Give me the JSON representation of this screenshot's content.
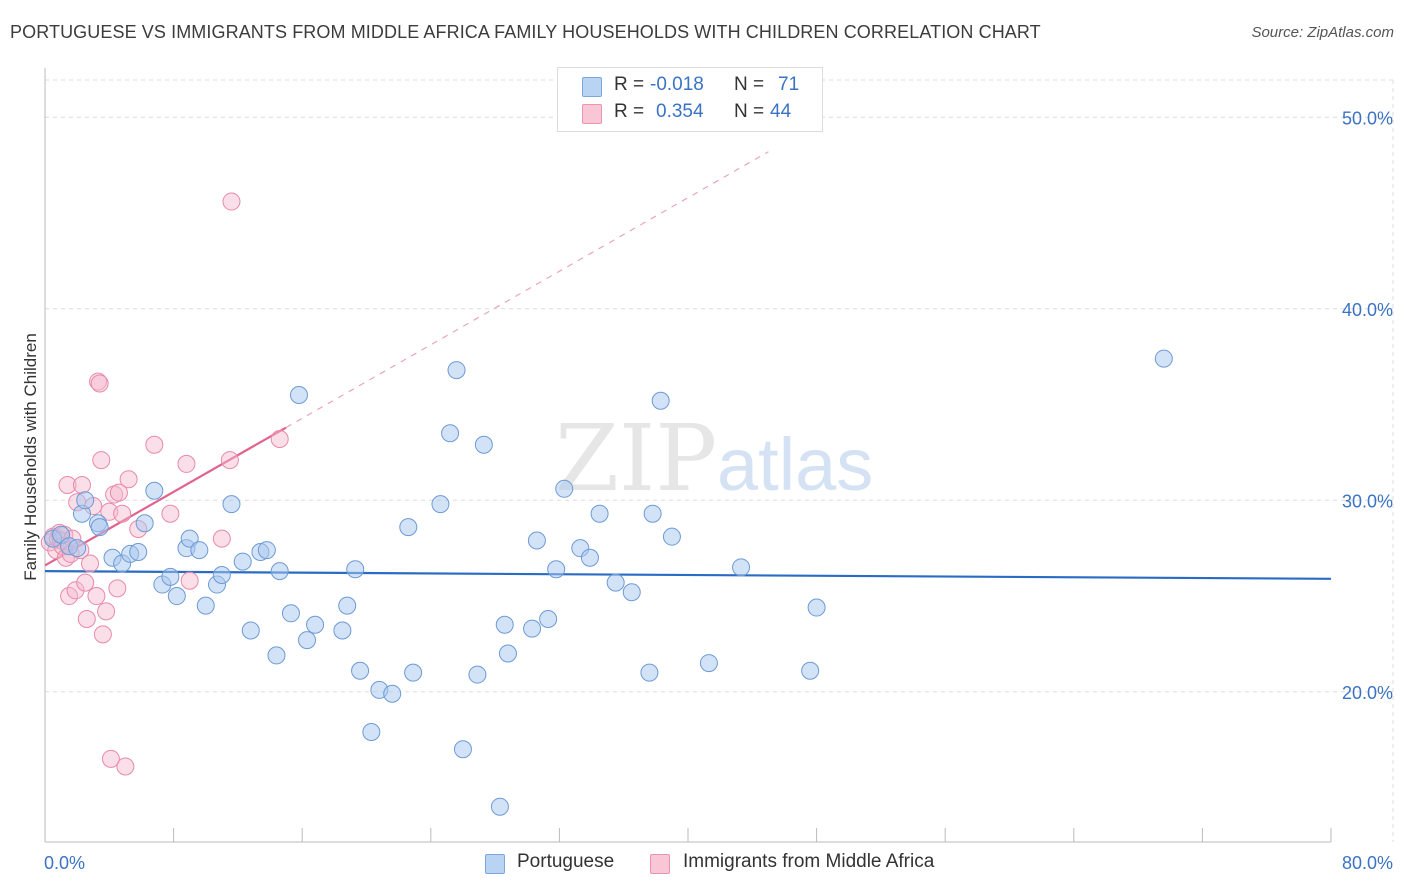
{
  "title": "PORTUGUESE VS IMMIGRANTS FROM MIDDLE AFRICA FAMILY HOUSEHOLDS WITH CHILDREN CORRELATION CHART",
  "source": "Source: ZipAtlas.com",
  "watermark": {
    "zip": "ZIP",
    "atlas": "atlas"
  },
  "legend_top": {
    "rows": [
      {
        "r_label": "R = ",
        "r_value": "-0.018",
        "n_label": "N = ",
        "n_value": "71"
      },
      {
        "r_label": "R = ",
        "r_value": "0.354",
        "n_label": "N = ",
        "n_value": "44"
      }
    ]
  },
  "legend_bottom": {
    "series1": "Portuguese",
    "series2": "Immigrants from Middle Africa"
  },
  "colors": {
    "blue_fill": "#a8c8f0",
    "blue_stroke": "#6d9ad6",
    "blue_line": "#2a6cc4",
    "pink_fill": "#f6b8cc",
    "pink_stroke": "#e88aa8",
    "pink_line": "#e0648e",
    "tick_text": "#3b73c4",
    "grid": "#dcdcdc"
  },
  "chart_data": {
    "type": "scatter",
    "title": "PORTUGUESE VS IMMIGRANTS FROM MIDDLE AFRICA FAMILY HOUSEHOLDS WITH CHILDREN CORRELATION CHART",
    "xlabel": "",
    "ylabel": "Family Households with Children",
    "xlim": [
      0,
      80
    ],
    "ylim": [
      10,
      52
    ],
    "x_tick_labels": [
      "0.0%",
      "80.0%"
    ],
    "y_ticks": [
      20,
      30,
      40,
      50
    ],
    "y_tick_labels": [
      "20.0%",
      "30.0%",
      "40.0%",
      "50.0%"
    ],
    "grid": true,
    "legend_position": "bottom",
    "series": [
      {
        "name": "Portuguese",
        "r": -0.018,
        "n": 71,
        "trend": {
          "x0": 0,
          "y0": 26.3,
          "x1": 80,
          "y1": 25.9
        },
        "points": [
          [
            0.5,
            28.0
          ],
          [
            1.0,
            28.2
          ],
          [
            1.5,
            27.6
          ],
          [
            2.0,
            27.5
          ],
          [
            2.3,
            29.3
          ],
          [
            2.5,
            30.0
          ],
          [
            3.3,
            28.8
          ],
          [
            3.4,
            28.6
          ],
          [
            4.2,
            27.0
          ],
          [
            4.8,
            26.7
          ],
          [
            5.3,
            27.2
          ],
          [
            5.8,
            27.3
          ],
          [
            6.2,
            28.8
          ],
          [
            6.8,
            30.5
          ],
          [
            7.3,
            25.6
          ],
          [
            7.8,
            26.0
          ],
          [
            8.2,
            25.0
          ],
          [
            8.8,
            27.5
          ],
          [
            9.0,
            28.0
          ],
          [
            9.6,
            27.4
          ],
          [
            10.0,
            24.5
          ],
          [
            10.7,
            25.6
          ],
          [
            11.0,
            26.1
          ],
          [
            11.6,
            29.8
          ],
          [
            12.3,
            26.8
          ],
          [
            12.8,
            23.2
          ],
          [
            13.4,
            27.3
          ],
          [
            13.8,
            27.4
          ],
          [
            14.4,
            21.9
          ],
          [
            14.6,
            26.3
          ],
          [
            15.3,
            24.1
          ],
          [
            15.8,
            35.5
          ],
          [
            16.3,
            22.7
          ],
          [
            16.8,
            23.5
          ],
          [
            18.5,
            23.2
          ],
          [
            18.8,
            24.5
          ],
          [
            19.3,
            26.4
          ],
          [
            19.6,
            21.1
          ],
          [
            20.3,
            17.9
          ],
          [
            20.8,
            20.1
          ],
          [
            21.6,
            19.9
          ],
          [
            22.6,
            28.6
          ],
          [
            22.9,
            21.0
          ],
          [
            24.6,
            29.8
          ],
          [
            25.2,
            33.5
          ],
          [
            25.6,
            36.8
          ],
          [
            26.0,
            17.0
          ],
          [
            26.9,
            20.9
          ],
          [
            27.3,
            32.9
          ],
          [
            28.3,
            14.0
          ],
          [
            28.6,
            23.5
          ],
          [
            28.8,
            22.0
          ],
          [
            30.3,
            23.3
          ],
          [
            30.6,
            27.9
          ],
          [
            31.3,
            23.8
          ],
          [
            31.8,
            26.4
          ],
          [
            32.3,
            30.6
          ],
          [
            33.3,
            27.5
          ],
          [
            33.9,
            27.0
          ],
          [
            34.5,
            29.3
          ],
          [
            35.5,
            25.7
          ],
          [
            36.5,
            25.2
          ],
          [
            37.6,
            21.0
          ],
          [
            37.8,
            29.3
          ],
          [
            38.3,
            35.2
          ],
          [
            39.0,
            28.1
          ],
          [
            41.3,
            21.5
          ],
          [
            43.3,
            26.5
          ],
          [
            47.6,
            21.1
          ],
          [
            48.0,
            24.4
          ],
          [
            69.6,
            37.4
          ]
        ]
      },
      {
        "name": "Immigrants from Middle Africa",
        "r": 0.354,
        "n": 44,
        "trend": {
          "x0": 0,
          "y0": 26.6,
          "x1": 15,
          "y1": 33.8
        },
        "trend_dashed_extension": {
          "x0": 15,
          "y0": 33.8,
          "x1": 45,
          "y1": 48.2
        },
        "points": [
          [
            0.3,
            27.8
          ],
          [
            0.5,
            28.1
          ],
          [
            0.7,
            27.4
          ],
          [
            0.8,
            28.0
          ],
          [
            0.9,
            28.3
          ],
          [
            1.0,
            27.9
          ],
          [
            1.1,
            27.6
          ],
          [
            1.2,
            28.2
          ],
          [
            1.3,
            27.0
          ],
          [
            1.4,
            30.8
          ],
          [
            1.5,
            25.0
          ],
          [
            1.6,
            27.2
          ],
          [
            1.7,
            28.0
          ],
          [
            1.9,
            25.3
          ],
          [
            2.0,
            29.9
          ],
          [
            2.2,
            27.4
          ],
          [
            2.3,
            30.8
          ],
          [
            2.5,
            25.7
          ],
          [
            2.6,
            23.8
          ],
          [
            2.8,
            26.7
          ],
          [
            3.0,
            29.7
          ],
          [
            3.2,
            25.0
          ],
          [
            3.3,
            36.2
          ],
          [
            3.4,
            36.1
          ],
          [
            3.5,
            32.1
          ],
          [
            3.6,
            23.0
          ],
          [
            3.8,
            24.2
          ],
          [
            4.0,
            29.4
          ],
          [
            4.1,
            16.5
          ],
          [
            4.3,
            30.3
          ],
          [
            4.5,
            25.4
          ],
          [
            4.6,
            30.4
          ],
          [
            4.8,
            29.3
          ],
          [
            5.0,
            16.1
          ],
          [
            5.2,
            31.1
          ],
          [
            5.8,
            28.5
          ],
          [
            6.8,
            32.9
          ],
          [
            7.8,
            29.3
          ],
          [
            8.8,
            31.9
          ],
          [
            9.0,
            25.8
          ],
          [
            11.0,
            28.0
          ],
          [
            11.5,
            32.1
          ],
          [
            11.6,
            45.6
          ],
          [
            14.6,
            33.2
          ]
        ]
      }
    ]
  }
}
